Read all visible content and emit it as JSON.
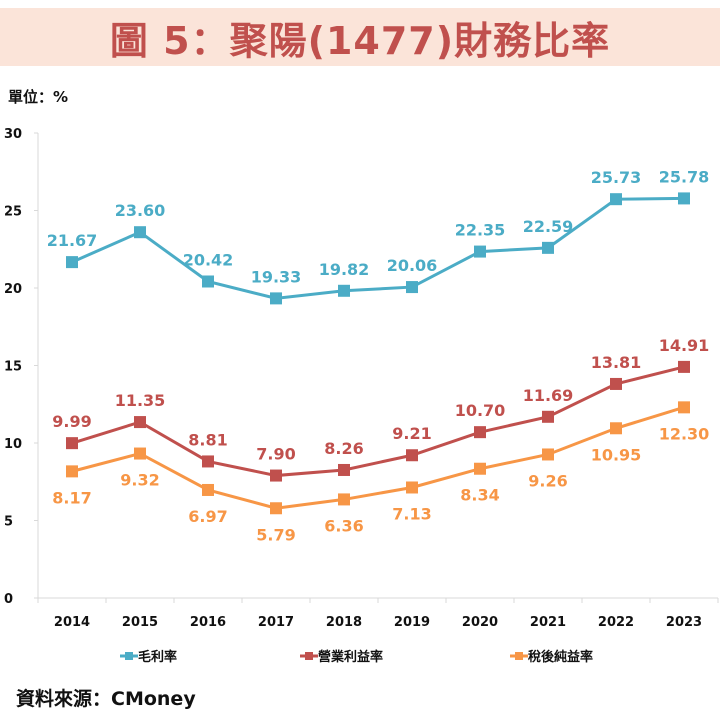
{
  "title": "圖 5：聚陽(1477)財務比率",
  "unit_label": "單位：%",
  "source": "資料來源：CMoney",
  "chart_data": {
    "type": "line",
    "title": "圖 5：聚陽(1477)財務比率",
    "xlabel": "",
    "ylabel": "單位：%",
    "categories": [
      "2014",
      "2015",
      "2016",
      "2017",
      "2018",
      "2019",
      "2020",
      "2021",
      "2022",
      "2023"
    ],
    "ylim": [
      0,
      30
    ],
    "yticks": [
      0,
      5,
      10,
      15,
      20,
      25,
      30
    ],
    "grid": false,
    "legend": "bottom",
    "series": [
      {
        "name": "毛利率",
        "color": "#4bacc6",
        "label_pos": "above",
        "values": [
          21.67,
          23.6,
          20.42,
          19.33,
          19.82,
          20.06,
          22.35,
          22.59,
          25.73,
          25.78
        ]
      },
      {
        "name": "營業利益率",
        "color": "#c0504d",
        "label_pos": "above",
        "values": [
          9.99,
          11.35,
          8.81,
          7.9,
          8.26,
          9.21,
          10.7,
          11.69,
          13.81,
          14.91
        ]
      },
      {
        "name": "稅後純益率",
        "color": "#f79646",
        "label_pos": "below",
        "values": [
          8.17,
          9.32,
          6.97,
          5.79,
          6.36,
          7.13,
          8.34,
          9.26,
          10.95,
          12.3
        ]
      }
    ]
  }
}
